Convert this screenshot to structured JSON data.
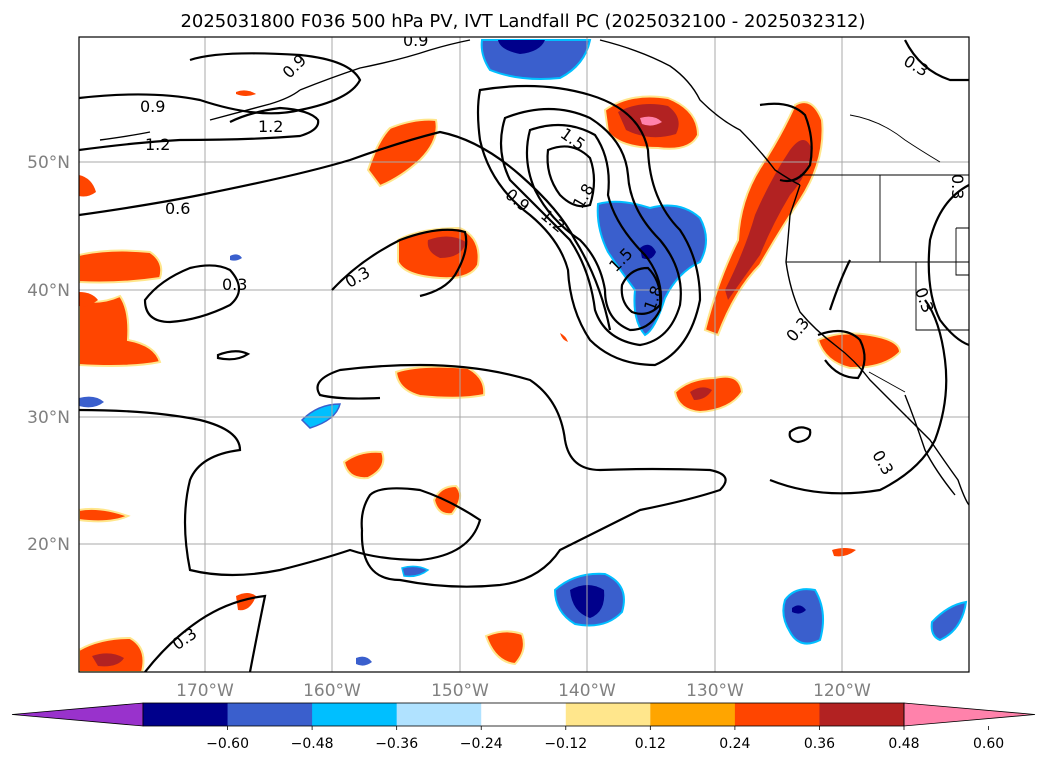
{
  "title": "2025031800 F036 500 hPa PV, IVT Landfall PC (2025032100 - 2025032312)",
  "lat_labels": [
    "50°N",
    "40°N",
    "30°N",
    "20°N"
  ],
  "lon_labels": [
    "170°W",
    "160°W",
    "150°W",
    "140°W",
    "130°W",
    "120°W"
  ],
  "colorbar": {
    "ticks": [
      "−0.60",
      "−0.48",
      "−0.36",
      "−0.24",
      "−0.12",
      "0.12",
      "0.24",
      "0.36",
      "0.48",
      "0.60"
    ],
    "colors": [
      "#9932cc",
      "#00008b",
      "#3a5fcd",
      "#00bfff",
      "#b0e2ff",
      "#ffffff",
      "#ffe68c",
      "#ffa500",
      "#ff4500",
      "#b22222",
      "#ff82ab"
    ]
  },
  "contour_labels": [
    {
      "id": "a",
      "text": "0.9"
    },
    {
      "id": "b",
      "text": "0.9"
    },
    {
      "id": "c",
      "text": "1.2"
    },
    {
      "id": "d",
      "text": "1.2"
    },
    {
      "id": "e",
      "text": "0.6"
    },
    {
      "id": "f",
      "text": "0.3"
    },
    {
      "id": "g",
      "text": "0.3"
    },
    {
      "id": "h",
      "text": "1.5"
    },
    {
      "id": "i",
      "text": "1.8"
    },
    {
      "id": "j",
      "text": "0.9"
    },
    {
      "id": "k",
      "text": "1.2"
    },
    {
      "id": "l",
      "text": "1.5"
    },
    {
      "id": "m",
      "text": "1.8"
    },
    {
      "id": "n",
      "text": "0.3"
    },
    {
      "id": "o",
      "text": "0.3"
    },
    {
      "id": "p",
      "text": "0.3"
    },
    {
      "id": "q",
      "text": "0.3"
    },
    {
      "id": "r",
      "text": "0.3"
    },
    {
      "id": "s",
      "text": "0.3"
    },
    {
      "id": "t",
      "text": "0.9"
    }
  ]
}
